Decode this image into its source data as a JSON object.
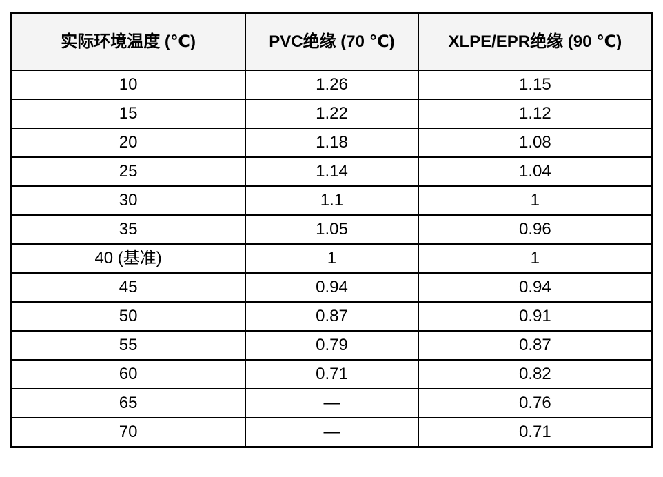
{
  "table": {
    "headers": [
      "实际环境温度 (℃)",
      "PVC绝缘 (70 ℃)",
      "XLPE/EPR绝缘 (90 ℃)"
    ],
    "rows": [
      {
        "temperature": "10",
        "pvc": "1.26",
        "xlpe": "1.15"
      },
      {
        "temperature": "15",
        "pvc": "1.22",
        "xlpe": "1.12"
      },
      {
        "temperature": "20",
        "pvc": "1.18",
        "xlpe": "1.08"
      },
      {
        "temperature": "25",
        "pvc": "1.14",
        "xlpe": "1.04"
      },
      {
        "temperature": "30",
        "pvc": "1.1",
        "xlpe": "1"
      },
      {
        "temperature": "35",
        "pvc": "1.05",
        "xlpe": "0.96"
      },
      {
        "temperature": "40 (基准)",
        "pvc": "1",
        "xlpe": "1"
      },
      {
        "temperature": "45",
        "pvc": "0.94",
        "xlpe": "0.94"
      },
      {
        "temperature": "50",
        "pvc": "0.87",
        "xlpe": "0.91"
      },
      {
        "temperature": "55",
        "pvc": "0.79",
        "xlpe": "0.87"
      },
      {
        "temperature": "60",
        "pvc": "0.71",
        "xlpe": "0.82"
      },
      {
        "temperature": "65",
        "pvc": "—",
        "xlpe": "0.76"
      },
      {
        "temperature": "70",
        "pvc": "—",
        "xlpe": "0.71"
      }
    ],
    "colors": {
      "border": "#000000",
      "header_background": "#f4f4f4",
      "body_background": "#ffffff",
      "text": "#000000"
    }
  },
  "chart_data": {
    "type": "table",
    "title": "",
    "columns": [
      "实际环境温度 (℃)",
      "PVC绝缘 (70 ℃)",
      "XLPE/EPR绝缘 (90 ℃)"
    ],
    "categories": [
      "10",
      "15",
      "20",
      "25",
      "30",
      "35",
      "40 (基准)",
      "45",
      "50",
      "55",
      "60",
      "65",
      "70"
    ],
    "series": [
      {
        "name": "PVC绝缘 (70 ℃)",
        "values": [
          1.26,
          1.22,
          1.18,
          1.14,
          1.1,
          1.05,
          1,
          0.94,
          0.87,
          0.79,
          0.71,
          null,
          null
        ]
      },
      {
        "name": "XLPE/EPR绝缘 (90 ℃)",
        "values": [
          1.15,
          1.12,
          1.08,
          1.04,
          1,
          0.96,
          1,
          0.94,
          0.91,
          0.87,
          0.82,
          0.76,
          0.71
        ]
      }
    ]
  }
}
